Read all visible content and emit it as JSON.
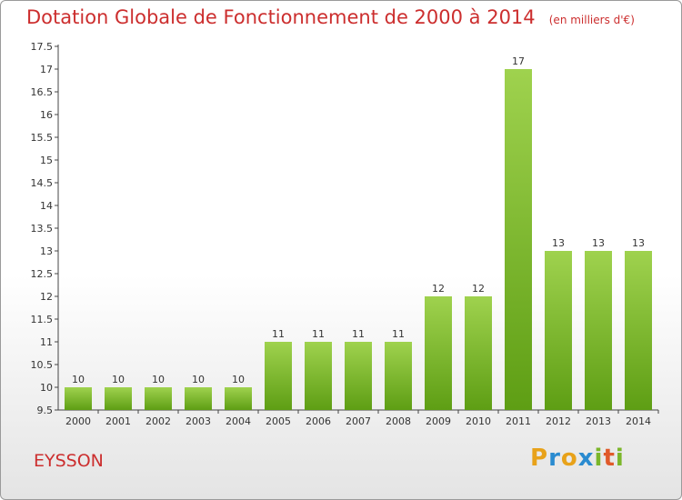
{
  "header": {
    "title": "Dotation Globale de Fonctionnement de 2000 à 2014",
    "subtitle": "(en milliers d'€)"
  },
  "footer": {
    "commune": "EYSSON",
    "logo_letters": [
      "P",
      "r",
      "o",
      "x",
      "i",
      "t",
      "i"
    ],
    "logo_colors": [
      "#e8a21a",
      "#2a8bd0",
      "#e8a21a",
      "#2a8bd0",
      "#7bb62a",
      "#e05a2a",
      "#7bb62a"
    ]
  },
  "colors": {
    "title": "#cc2e2e",
    "bar_top": "#9fd24e",
    "bar_bottom": "#5e9e14"
  },
  "chart_data": {
    "type": "bar",
    "categories": [
      "2000",
      "2001",
      "2002",
      "2003",
      "2004",
      "2005",
      "2006",
      "2007",
      "2008",
      "2009",
      "2010",
      "2011",
      "2012",
      "2013",
      "2014"
    ],
    "values": [
      10,
      10,
      10,
      10,
      10,
      11,
      11,
      11,
      11,
      12,
      12,
      17,
      13,
      13,
      13
    ],
    "data_labels": [
      "10",
      "10",
      "10",
      "10",
      "10",
      "11",
      "11",
      "11",
      "11",
      "12",
      "12",
      "17",
      "13",
      "13",
      "13"
    ],
    "y_ticks": [
      "9.5",
      "10",
      "10.5",
      "11",
      "11.5",
      "12",
      "12.5",
      "13",
      "13.5",
      "14",
      "14.5",
      "15",
      "15.5",
      "16",
      "16.5",
      "17",
      "17.5"
    ],
    "ylim": [
      9.5,
      17.5
    ],
    "grid": false
  }
}
